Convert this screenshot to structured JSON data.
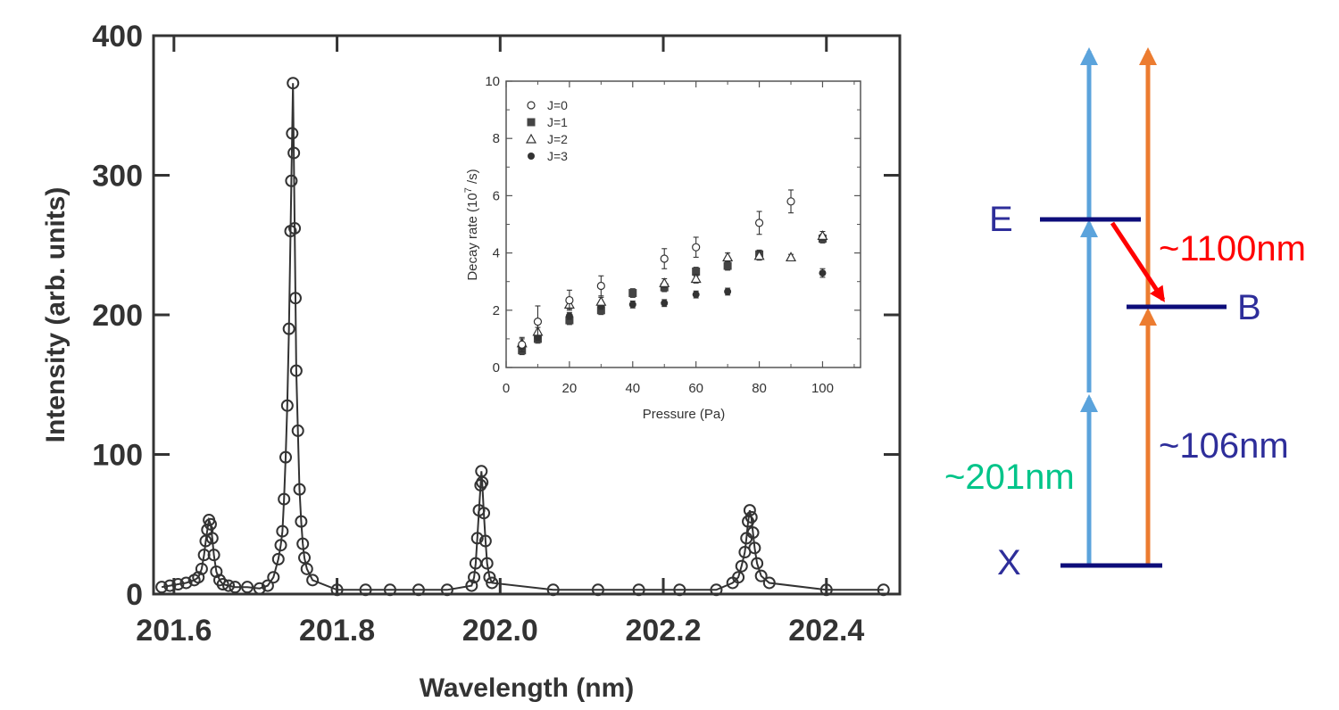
{
  "chart_data": [
    {
      "type": "line",
      "title": "",
      "xlabel": "Wavelength (nm)",
      "ylabel": "Intensity (arb. units)",
      "xlim": [
        201.575,
        202.49
      ],
      "ylim": [
        0,
        400
      ],
      "x_ticks": [
        "201.6",
        "201.8",
        "202.0",
        "202.2",
        "202.4"
      ],
      "y_ticks": [
        "0",
        "100",
        "200",
        "300",
        "400"
      ],
      "grid": false,
      "series": [
        {
          "style": "open-circle-markers-with-solid-fit-line",
          "points": [
            [
              201.585,
              5
            ],
            [
              201.595,
              6
            ],
            [
              201.605,
              7
            ],
            [
              201.615,
              8
            ],
            [
              201.625,
              10
            ],
            [
              201.63,
              12
            ],
            [
              201.634,
              18
            ],
            [
              201.637,
              28
            ],
            [
              201.639,
              38
            ],
            [
              201.641,
              46
            ],
            [
              201.643,
              53
            ],
            [
              201.645,
              50
            ],
            [
              201.647,
              40
            ],
            [
              201.649,
              28
            ],
            [
              201.652,
              16
            ],
            [
              201.656,
              10
            ],
            [
              201.66,
              7
            ],
            [
              201.667,
              6
            ],
            [
              201.675,
              5
            ],
            [
              201.69,
              5
            ],
            [
              201.705,
              4
            ],
            [
              201.715,
              6
            ],
            [
              201.722,
              12
            ],
            [
              201.728,
              25
            ],
            [
              201.731,
              35
            ],
            [
              201.733,
              45
            ],
            [
              201.735,
              68
            ],
            [
              201.737,
              98
            ],
            [
              201.739,
              135
            ],
            [
              201.741,
              190
            ],
            [
              201.743,
              260
            ],
            [
              201.744,
              296
            ],
            [
              201.745,
              330
            ],
            [
              201.746,
              366
            ],
            [
              201.747,
              316
            ],
            [
              201.748,
              262
            ],
            [
              201.749,
              212
            ],
            [
              201.75,
              160
            ],
            [
              201.752,
              117
            ],
            [
              201.754,
              75
            ],
            [
              201.756,
              52
            ],
            [
              201.758,
              36
            ],
            [
              201.76,
              26
            ],
            [
              201.763,
              18
            ],
            [
              201.77,
              10
            ],
            [
              201.8,
              3
            ],
            [
              201.835,
              3
            ],
            [
              201.865,
              3
            ],
            [
              201.9,
              3
            ],
            [
              201.935,
              3
            ],
            [
              201.965,
              6
            ],
            [
              201.968,
              12
            ],
            [
              201.97,
              22
            ],
            [
              201.972,
              40
            ],
            [
              201.974,
              60
            ],
            [
              201.976,
              78
            ],
            [
              201.977,
              88
            ],
            [
              201.978,
              80
            ],
            [
              201.98,
              58
            ],
            [
              201.982,
              38
            ],
            [
              201.984,
              22
            ],
            [
              201.987,
              12
            ],
            [
              201.99,
              8
            ],
            [
              202.065,
              3
            ],
            [
              202.12,
              3
            ],
            [
              202.17,
              3
            ],
            [
              202.22,
              3
            ],
            [
              202.265,
              3
            ],
            [
              202.285,
              8
            ],
            [
              202.292,
              12
            ],
            [
              202.296,
              20
            ],
            [
              202.3,
              30
            ],
            [
              202.302,
              40
            ],
            [
              202.304,
              52
            ],
            [
              202.306,
              60
            ],
            [
              202.308,
              55
            ],
            [
              202.31,
              44
            ],
            [
              202.312,
              33
            ],
            [
              202.315,
              22
            ],
            [
              202.32,
              13
            ],
            [
              202.33,
              8
            ],
            [
              202.4,
              3
            ],
            [
              202.47,
              3
            ]
          ]
        }
      ]
    },
    {
      "type": "scatter",
      "title": "",
      "xlabel": "Pressure (Pa)",
      "ylabel_main": "Decay rate (10",
      "ylabel_sup": "7",
      "ylabel_tail": " /s)",
      "xlim": [
        0,
        112
      ],
      "ylim": [
        0,
        10
      ],
      "x_ticks": [
        "0",
        "20",
        "40",
        "60",
        "80",
        "100"
      ],
      "y_ticks": [
        "0",
        "2",
        "4",
        "6",
        "8",
        "10"
      ],
      "legend_position": "top-left",
      "series": [
        {
          "name": "J=0",
          "marker": "open-circle",
          "x": [
            5,
            10,
            20,
            30,
            50,
            60,
            80,
            90
          ],
          "y": [
            0.8,
            1.6,
            2.35,
            2.85,
            3.8,
            4.2,
            5.05,
            5.8
          ],
          "err": [
            0.25,
            0.55,
            0.35,
            0.35,
            0.35,
            0.35,
            0.4,
            0.4
          ]
        },
        {
          "name": "J=1",
          "marker": "filled-square",
          "x": [
            5,
            10,
            20,
            30,
            40,
            50,
            60,
            70,
            80,
            100
          ],
          "y": [
            0.6,
            1.0,
            1.65,
            2.0,
            2.6,
            2.8,
            3.35,
            3.55,
            3.95,
            4.5
          ],
          "err": [
            0.15,
            0.15,
            0.15,
            0.15,
            0.15,
            0.15,
            0.15,
            0.15,
            0.15,
            0.15
          ]
        },
        {
          "name": "J=2",
          "marker": "open-triangle",
          "x": [
            5,
            10,
            20,
            30,
            50,
            60,
            70,
            80,
            90,
            100
          ],
          "y": [
            0.85,
            1.25,
            2.2,
            2.3,
            2.95,
            3.1,
            3.85,
            3.9,
            3.85,
            4.6
          ],
          "err": [
            0.15,
            0.15,
            0.15,
            0.15,
            0.15,
            0.15,
            0.15,
            0.15,
            0.1,
            0.15
          ]
        },
        {
          "name": "J=3",
          "marker": "filled-circle",
          "x": [
            5,
            10,
            20,
            30,
            40,
            50,
            60,
            70,
            100
          ],
          "y": [
            0.75,
            1.05,
            1.8,
            2.15,
            2.2,
            2.25,
            2.55,
            2.65,
            3.3
          ],
          "err": [
            0.12,
            0.12,
            0.12,
            0.12,
            0.12,
            0.12,
            0.12,
            0.12,
            0.15
          ]
        }
      ]
    }
  ],
  "energy_diagram": {
    "levels": [
      "E",
      "B",
      "X"
    ],
    "transitions": [
      "~1100nm",
      "~106nm",
      "~201nm"
    ],
    "colors": {
      "level": "#0d0d7a",
      "level_text": "#2e2e9a",
      "blue_arrow": "#5ba3dc",
      "orange_arrow": "#ec7c30",
      "red_arrow": "#ff0000",
      "label_1100": "#ff0000",
      "label_106": "#2e2e9a",
      "label_201": "#00c489"
    }
  }
}
